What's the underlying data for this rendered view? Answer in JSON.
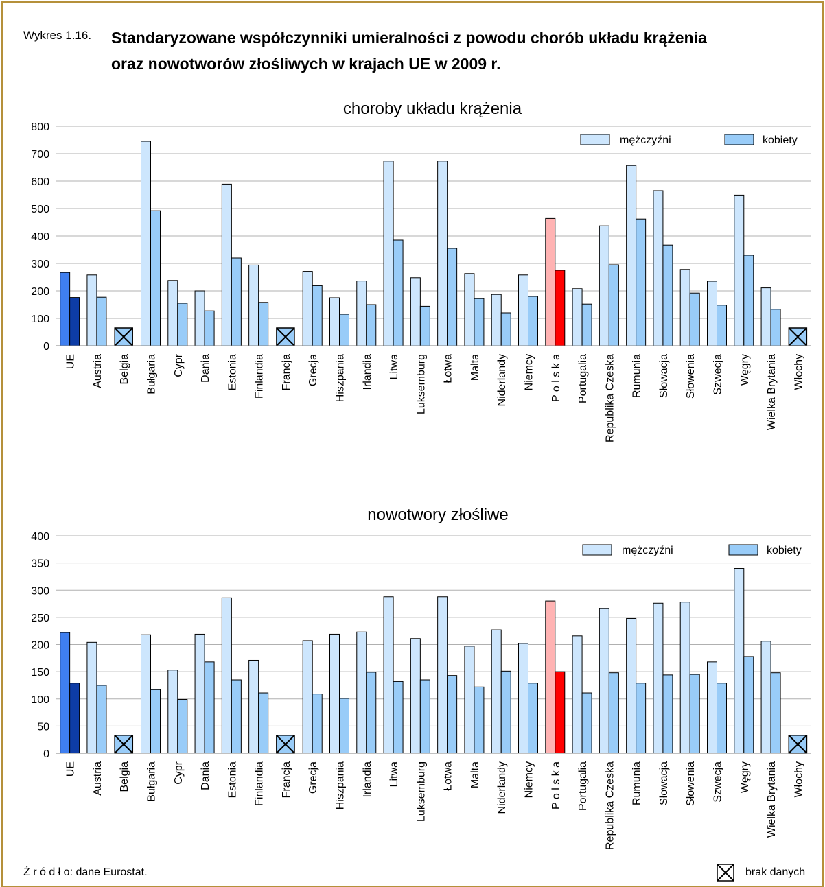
{
  "header": {
    "label": "Wykres 1.16.",
    "title_line1": "Standaryzowane współczynniki umieralności z powodu chorób układu krążenia",
    "title_line2": "oraz nowotworów złośliwych w krajach UE w 2009 r."
  },
  "footer": {
    "source": "Ź r ó d ł o: dane Eurostat.",
    "no_data": "brak danych"
  },
  "colors": {
    "men": "#cde6fd",
    "women": "#99ccf8",
    "eu_men": "#3f7ff0",
    "eu_women": "#0d3ca6",
    "pl_men": "#ffb3b3",
    "pl_women": "#ff0000",
    "nodata_fill": "#99ccf8",
    "grid": "#b0b0b0",
    "frame": "#b5903a"
  },
  "chart_data": [
    {
      "type": "bar",
      "title": "choroby układu krążenia",
      "ylim": [
        0,
        800
      ],
      "yticks": [
        0,
        100,
        200,
        300,
        400,
        500,
        600,
        700,
        800
      ],
      "grid": true,
      "legend_placement": "top-right",
      "no_data_marker_value": 65,
      "categories": [
        "UE",
        "Austria",
        "Belgia",
        "Bułgaria",
        "Cypr",
        "Dania",
        "Estonia",
        "Finlandia",
        "Francja",
        "Grecja",
        "Hiszpania",
        "Irlandia",
        "Litwa",
        "Luksemburg",
        "Łotwa",
        "Malta",
        "Niderlandy",
        "Niemcy",
        "P o l s k a",
        "Portugalia",
        "Republika Czeska",
        "Rumunia",
        "Słowacja",
        "Słowenia",
        "Szwecja",
        "Węgry",
        "Wielka Brytania",
        "Włochy"
      ],
      "series": [
        {
          "name": "mężczyźni",
          "values": [
            267,
            258,
            null,
            745,
            238,
            200,
            589,
            294,
            null,
            271,
            175,
            236,
            673,
            248,
            673,
            263,
            187,
            258,
            464,
            208,
            437,
            657,
            565,
            278,
            235,
            549,
            211,
            null
          ]
        },
        {
          "name": "kobiety",
          "values": [
            176,
            177,
            null,
            492,
            155,
            127,
            320,
            158,
            null,
            219,
            115,
            150,
            385,
            144,
            355,
            172,
            120,
            180,
            275,
            152,
            295,
            462,
            367,
            192,
            148,
            330,
            133,
            null
          ]
        }
      ]
    },
    {
      "type": "bar",
      "title": "nowotwory złośliwe",
      "ylim": [
        0,
        400
      ],
      "yticks": [
        0,
        50,
        100,
        150,
        200,
        250,
        300,
        350,
        400
      ],
      "grid": true,
      "legend_placement": "top-right",
      "no_data_marker_value": 33,
      "categories": [
        "UE",
        "Austria",
        "Belgia",
        "Bułgaria",
        "Cypr",
        "Dania",
        "Estonia",
        "Finlandia",
        "Francja",
        "Grecja",
        "Hiszpania",
        "Irlandia",
        "Litwa",
        "Luksemburg",
        "Łotwa",
        "Malta",
        "Niderlandy",
        "Niemcy",
        "P o l s k a",
        "Portugalia",
        "Republika Czeska",
        "Rumunia",
        "Słowacja",
        "Słowenia",
        "Szwecja",
        "Węgry",
        "Wielka Brytania",
        "Włochy"
      ],
      "series": [
        {
          "name": "mężczyźni",
          "values": [
            222,
            204,
            null,
            218,
            153,
            219,
            286,
            171,
            null,
            207,
            219,
            223,
            288,
            211,
            288,
            197,
            227,
            202,
            280,
            216,
            266,
            248,
            276,
            278,
            168,
            340,
            206,
            null
          ]
        },
        {
          "name": "kobiety",
          "values": [
            129,
            125,
            null,
            117,
            99,
            168,
            135,
            111,
            null,
            109,
            101,
            149,
            132,
            135,
            143,
            122,
            151,
            129,
            150,
            111,
            148,
            129,
            144,
            145,
            129,
            178,
            148,
            null
          ]
        }
      ]
    }
  ]
}
